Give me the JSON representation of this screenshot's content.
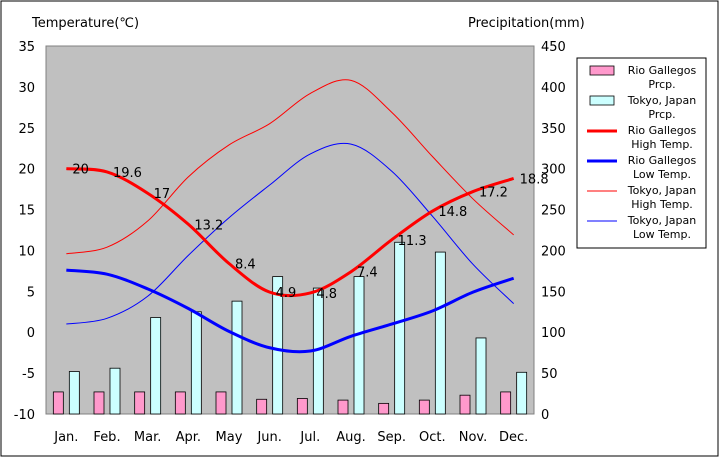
{
  "chart_data": {
    "type": "bar+line",
    "y_left_label": "Temperature(℃)",
    "y_right_label": "Precipitation(mm)",
    "y_left_range": [
      -10,
      35
    ],
    "y_left_ticks": [
      "35",
      "30",
      "25",
      "20",
      "15",
      "10",
      "5",
      "0",
      "-5",
      "-10"
    ],
    "y_right_range": [
      0,
      450
    ],
    "y_right_ticks": [
      "450",
      "400",
      "350",
      "300",
      "250",
      "200",
      "150",
      "100",
      "50",
      "0"
    ],
    "categories": [
      "Jan.",
      "Feb.",
      "Mar.",
      "Apr.",
      "May",
      "Jun.",
      "Jul.",
      "Aug.",
      "Sep.",
      "Oct.",
      "Nov.",
      "Dec."
    ],
    "grid": false,
    "legend_position": "right",
    "series": [
      {
        "name": "Rio Gallegos Prcp.",
        "type": "bar",
        "axis": "right",
        "color": "#ff99cc",
        "values": [
          27,
          27,
          27,
          27,
          27,
          18,
          19,
          17,
          13,
          17,
          23,
          27
        ]
      },
      {
        "name": "Tokyo, Japan Prcp.",
        "type": "bar",
        "axis": "right",
        "color": "#ccffff",
        "values": [
          52,
          56,
          118,
          125,
          138,
          168,
          154,
          168,
          210,
          198,
          93,
          51
        ]
      },
      {
        "name": "Rio Gallegos High Temp.",
        "type": "line",
        "axis": "left",
        "color": "#ff0000",
        "width": 3,
        "values": [
          20,
          19.6,
          17,
          13.2,
          8.4,
          4.9,
          4.8,
          7.4,
          11.3,
          14.8,
          17.2,
          18.8
        ],
        "labels": [
          "20",
          "19.6",
          "17",
          "13.2",
          "8.4",
          "4.9",
          "4.8",
          "7.4",
          "11.3",
          "14.8",
          "17.2",
          "18.8"
        ]
      },
      {
        "name": "Rio Gallegos Low Temp.",
        "type": "line",
        "axis": "left",
        "color": "#0000ff",
        "width": 3,
        "values": [
          7.6,
          7.1,
          5.3,
          2.9,
          0.1,
          -1.9,
          -2.3,
          -0.5,
          1.0,
          2.6,
          4.9,
          6.6
        ]
      },
      {
        "name": "Tokyo, Japan High Temp.",
        "type": "line",
        "axis": "left",
        "color": "#ff0000",
        "width": 1,
        "values": [
          9.6,
          10.4,
          13.6,
          19.0,
          22.9,
          25.5,
          29.2,
          30.8,
          26.9,
          21.5,
          16.3,
          11.9
        ]
      },
      {
        "name": "Tokyo, Japan Low Temp.",
        "type": "line",
        "axis": "left",
        "color": "#0000ff",
        "width": 1,
        "values": [
          1.0,
          1.7,
          4.4,
          9.4,
          14.0,
          18.0,
          21.8,
          23.0,
          19.7,
          14.2,
          8.3,
          3.5
        ]
      }
    ],
    "legend": [
      {
        "line1": "Rio Gallegos",
        "line2": "Prcp."
      },
      {
        "line1": "Tokyo, Japan",
        "line2": "Prcp."
      },
      {
        "line1": "Rio Gallegos",
        "line2": "High Temp."
      },
      {
        "line1": "Rio Gallegos",
        "line2": "Low Temp."
      },
      {
        "line1": "Tokyo, Japan",
        "line2": "High Temp."
      },
      {
        "line1": "Tokyo, Japan",
        "line2": "Low Temp."
      }
    ]
  }
}
